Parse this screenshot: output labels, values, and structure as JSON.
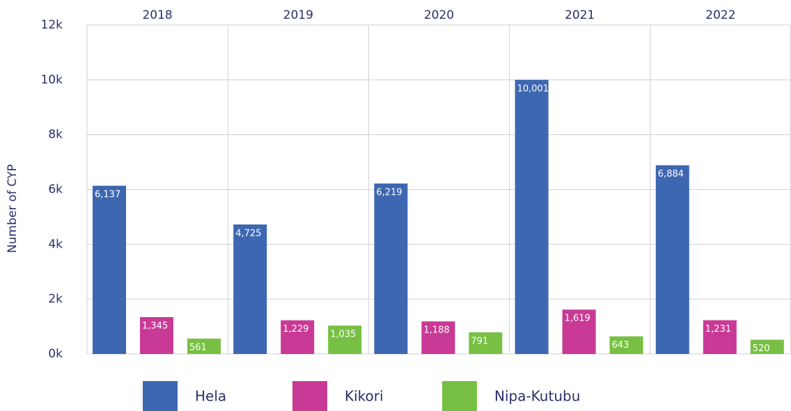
{
  "chart_data": {
    "type": "bar",
    "y_label": "Number of CYP",
    "categories": [
      "2018",
      "2019",
      "2020",
      "2021",
      "2022"
    ],
    "series": [
      {
        "name": "Hela",
        "color": "#3e67b1",
        "values": [
          6137,
          4725,
          6219,
          10001,
          6884
        ],
        "value_labels": [
          "6,137",
          "4,725",
          "6,219",
          "10,001",
          "6,884"
        ]
      },
      {
        "name": "Kikori",
        "color": "#c93a96",
        "values": [
          1345,
          1229,
          1188,
          1619,
          1231
        ],
        "value_labels": [
          "1,345",
          "1,229",
          "1,188",
          "1,619",
          "1,231"
        ]
      },
      {
        "name": "Nipa-Kutubu",
        "color": "#78c043",
        "values": [
          561,
          1035,
          791,
          643,
          520
        ],
        "value_labels": [
          "561",
          "1,035",
          "791",
          "643",
          "520"
        ]
      }
    ],
    "ylim": [
      0,
      12000
    ],
    "yticks": [
      {
        "value": 0,
        "label": "0k"
      },
      {
        "value": 2000,
        "label": "2k"
      },
      {
        "value": 4000,
        "label": "4k"
      },
      {
        "value": 6000,
        "label": "6k"
      },
      {
        "value": 8000,
        "label": "8k"
      },
      {
        "value": 10000,
        "label": "10k"
      },
      {
        "value": 12000,
        "label": "12k"
      }
    ],
    "grid": true,
    "legend": "bottom"
  }
}
